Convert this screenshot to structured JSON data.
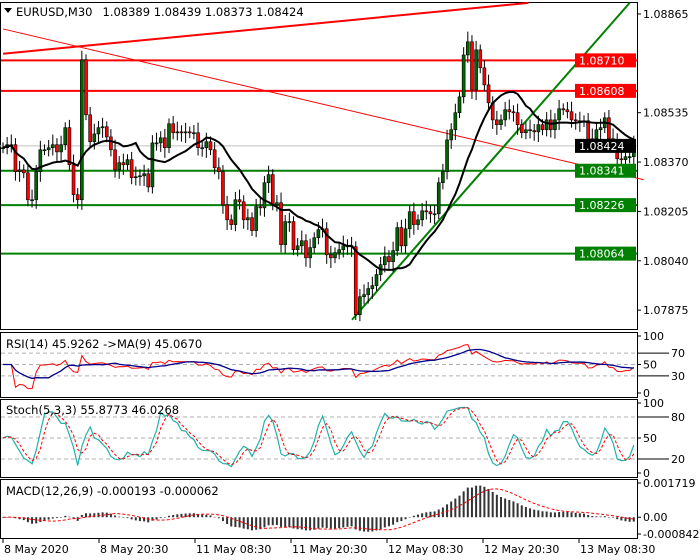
{
  "header": {
    "symbol": "EURUSD,M30",
    "ohlc": "1.08389 1.08439 1.08373 1.08424"
  },
  "chart_data": {
    "type": "candlestick",
    "title": "EURUSD,M30",
    "ylim": [
      1.07812,
      1.08905
    ],
    "y_ticks": [
      "1.08865",
      "1.08535",
      "1.08370",
      "1.08205",
      "1.08040",
      "1.07875"
    ],
    "x_ticks": [
      "8 May 2020",
      "8 May 20:30",
      "11 May 08:30",
      "11 May 20:30",
      "12 May 08:30",
      "12 May 20:30",
      "13 May 08:30"
    ],
    "closes": [
      1.08418,
      1.08428,
      1.08428,
      1.08338,
      1.08344,
      1.08334,
      1.08244,
      1.08244,
      1.08338,
      1.08411,
      1.08411,
      1.08418,
      1.08428,
      1.08404,
      1.08428,
      1.08485,
      1.08361,
      1.08261,
      1.08244,
      1.08712,
      1.08528,
      1.08438,
      1.08464,
      1.08485,
      1.08488,
      1.08454,
      1.08411,
      1.08344,
      1.08368,
      1.08361,
      1.08378,
      1.08318,
      1.08321,
      1.08324,
      1.08331,
      1.08287,
      1.08434,
      1.08434,
      1.08451,
      1.08418,
      1.08498,
      1.08468,
      1.08471,
      1.08468,
      1.08471,
      1.08468,
      1.08468,
      1.08418,
      1.08418,
      1.08438,
      1.08411,
      1.08351,
      1.08338,
      1.08227,
      1.08177,
      1.08161,
      1.08244,
      1.08237,
      1.08177,
      1.08184,
      1.08141,
      1.08221,
      1.08217,
      1.08301,
      1.08328,
      1.08227,
      1.08234,
      1.08094,
      1.08171,
      1.08171,
      1.08077,
      1.0809,
      1.08107,
      1.0805,
      1.08084,
      1.08117,
      1.08144,
      1.08147,
      1.0806,
      1.0805,
      1.08067,
      1.08077,
      1.0809,
      1.0809,
      1.08087,
      1.0786,
      1.0792,
      1.07927,
      1.07947,
      1.07957,
      1.07994,
      1.08027,
      1.08054,
      1.08037,
      1.08074,
      1.08151,
      1.0809,
      1.08147,
      1.08204,
      1.08161,
      1.08177,
      1.08207,
      1.08204,
      1.08197,
      1.08197,
      1.08301,
      1.08338,
      1.08444,
      1.08478,
      1.08535,
      1.08588,
      1.08728,
      1.08772,
      1.08611,
      1.08745,
      1.08685,
      1.08628,
      1.08568,
      1.08511,
      1.08495,
      1.08511,
      1.08545,
      1.08538,
      1.08535,
      1.08495,
      1.08468,
      1.08478,
      1.08475,
      1.08471,
      1.08495,
      1.08478,
      1.08511,
      1.08478,
      1.08511,
      1.08548,
      1.08545,
      1.08538,
      1.08511,
      1.08508,
      1.08505,
      1.08508,
      1.08444,
      1.08448,
      1.08478,
      1.08485,
      1.08518,
      1.08448,
      1.08444,
      1.08381,
      1.08378,
      1.08388,
      1.08388,
      1.08424
    ],
    "current_price": {
      "value": "1.08424",
      "color": "#000000"
    },
    "levels": [
      {
        "value": "1.08710",
        "color": "#ff0000"
      },
      {
        "value": "1.08608",
        "color": "#ff0000"
      },
      {
        "value": "1.08341",
        "color": "#008000"
      },
      {
        "value": "1.08226",
        "color": "#008000"
      },
      {
        "value": "1.08064",
        "color": "#008000"
      }
    ],
    "trendlines": [
      {
        "from": [
          0,
          1.08732
        ],
        "to": [
          126.6,
          1.08902
        ],
        "color": "#ff0000"
      },
      {
        "from": [
          0,
          1.08815
        ],
        "to": [
          154.4,
          1.08311
        ],
        "color": "#ff0000"
      },
      {
        "from": [
          84.1,
          1.07843
        ],
        "to": [
          151,
          1.08902
        ],
        "color": "#008000"
      }
    ],
    "colors": {
      "bull": "#006400",
      "bear": "#ff0000",
      "ma": "#000000"
    },
    "indicators": {
      "rsi": {
        "label": "RSI(14) 45.9262  ->MA(9) 45.0670",
        "ticks": [
          "100",
          "70",
          "50",
          "30",
          "0"
        ],
        "colors": {
          "rsi": "#ff0000",
          "ma": "#00008b"
        }
      },
      "stoch": {
        "label": "Stoch(5,3,3) 55.8773 46.0268",
        "ticks": [
          "100",
          "80",
          "50",
          "20",
          "0"
        ],
        "colors": {
          "main": "#20b2aa",
          "signal": "#ff0000"
        }
      },
      "macd": {
        "label": "MACD(12,26,9) -0.000193 -0.000062",
        "ticks": [
          "0.001719",
          "0.00",
          "-0.000842"
        ],
        "range": [
          -0.000842,
          0.001719
        ],
        "colors": {
          "hist": "#333333",
          "signal": "#ff0000"
        }
      }
    }
  }
}
